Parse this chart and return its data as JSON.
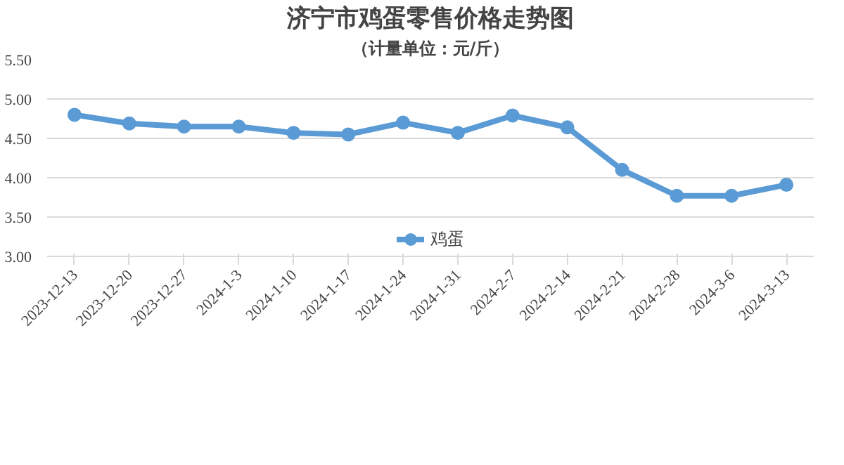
{
  "chart_data": {
    "type": "line",
    "title": "济宁市鸡蛋零售价格走势图",
    "subtitle": "（计量单位：元/斤）",
    "categories": [
      "2023-12-13",
      "2023-12-20",
      "2023-12-27",
      "2024-1-3",
      "2024-1-10",
      "2024-1-17",
      "2024-1-24",
      "2024-1-31",
      "2024-2-7",
      "2024-2-14",
      "2024-2-21",
      "2024-2-28",
      "2024-3-6",
      "2024-3-13"
    ],
    "series": [
      {
        "name": "鸡蛋",
        "color": "#5b9bd5",
        "values": [
          4.8,
          4.69,
          4.65,
          4.65,
          4.57,
          4.55,
          4.7,
          4.57,
          4.79,
          4.64,
          4.1,
          3.77,
          3.77,
          3.91
        ]
      }
    ],
    "ylim": [
      3.0,
      5.5
    ],
    "yticks": [
      {
        "value": 3.0,
        "label": "3.00"
      },
      {
        "value": 3.5,
        "label": "3.50"
      },
      {
        "value": 4.0,
        "label": "4.00"
      },
      {
        "value": 4.5,
        "label": "4.50"
      },
      {
        "value": 5.0,
        "label": "5.00"
      },
      {
        "value": 5.5,
        "label": "5.50"
      }
    ],
    "grid": "y",
    "legend": "bottom",
    "marker": "circle",
    "line_style": "solid"
  }
}
